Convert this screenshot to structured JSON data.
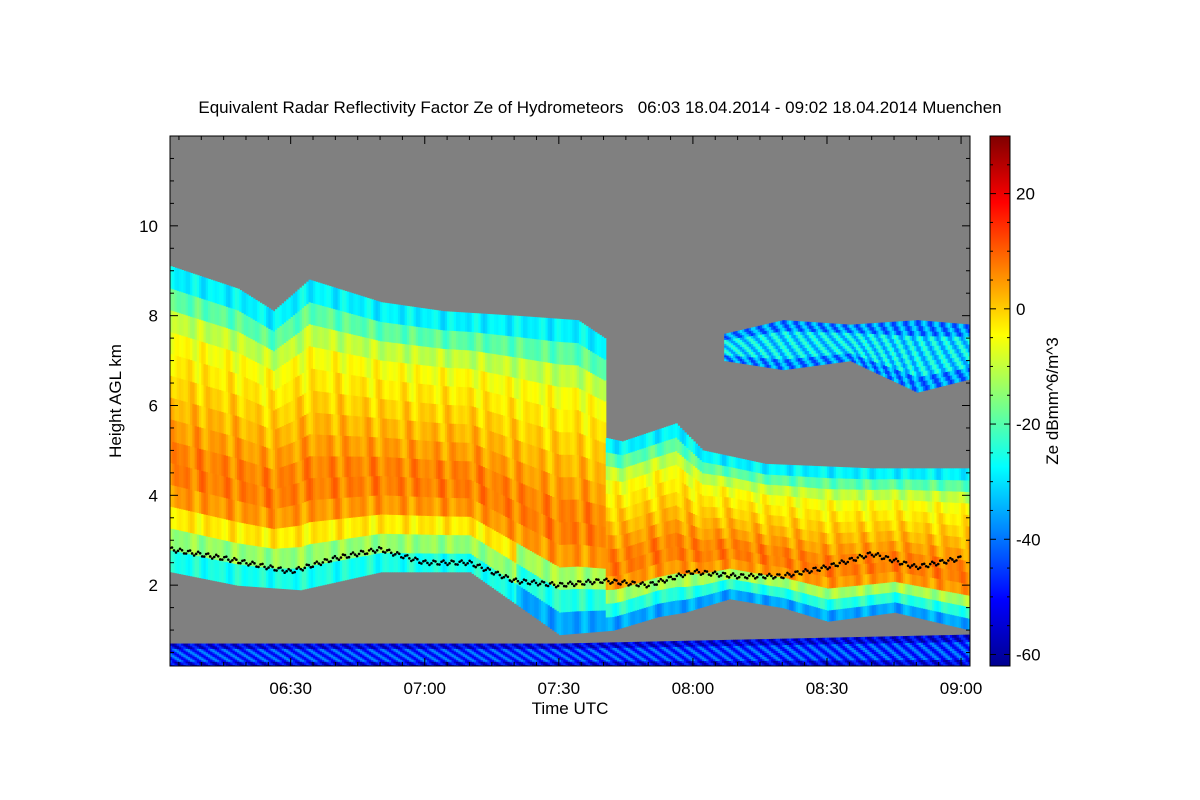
{
  "chart_data": {
    "type": "heatmap",
    "title": "Equivalent Radar Reflectivity Factor Ze of Hydrometeors   06:03 18.04.2014 - 09:02 18.04.2014 Muenchen",
    "xlabel": "Time UTC",
    "ylabel": "Height AGL km",
    "x_range_minutes": [
      363,
      542
    ],
    "ylim": [
      0.2,
      12.0
    ],
    "x_ticks": [
      {
        "minutes": 390,
        "label": "06:30"
      },
      {
        "minutes": 420,
        "label": "07:00"
      },
      {
        "minutes": 450,
        "label": "07:30"
      },
      {
        "minutes": 480,
        "label": "08:00"
      },
      {
        "minutes": 510,
        "label": "08:30"
      },
      {
        "minutes": 540,
        "label": "09:00"
      }
    ],
    "y_ticks": [
      2,
      4,
      6,
      8,
      10
    ],
    "colorbar": {
      "label": "Ze dBmm^6/m^3",
      "range": [
        -62,
        30
      ],
      "ticks": [
        20,
        0,
        -20,
        -40,
        -60
      ],
      "colormap": [
        "#00008f",
        "#0000ff",
        "#0080ff",
        "#00ffff",
        "#80ff80",
        "#ffff00",
        "#ff8000",
        "#ff0000",
        "#800000"
      ]
    },
    "background_color": "#808080",
    "cloud_layers": [
      {
        "name": "main precipitating cloud",
        "top_km": [
          [
            363,
            9.1
          ],
          [
            378,
            8.6
          ],
          [
            386,
            8.1
          ],
          [
            394,
            8.8
          ],
          [
            410,
            8.3
          ],
          [
            424,
            8.1
          ],
          [
            440,
            8.0
          ],
          [
            454,
            7.9
          ],
          [
            460,
            7.5
          ],
          [
            452,
            7.0
          ],
          [
            436,
            6.8
          ],
          [
            430,
            6.5
          ],
          [
            440,
            5.9
          ],
          [
            450,
            5.5
          ],
          [
            464,
            5.2
          ],
          [
            476,
            5.6
          ],
          [
            482,
            5.0
          ],
          [
            496,
            4.7
          ],
          [
            520,
            4.6
          ],
          [
            542,
            4.6
          ]
        ],
        "base_km": [
          [
            363,
            2.3
          ],
          [
            378,
            2.0
          ],
          [
            392,
            1.9
          ],
          [
            410,
            2.3
          ],
          [
            430,
            2.3
          ],
          [
            440,
            1.6
          ],
          [
            450,
            0.9
          ],
          [
            462,
            1.0
          ],
          [
            472,
            1.3
          ],
          [
            478,
            1.4
          ],
          [
            488,
            1.7
          ],
          [
            500,
            1.5
          ],
          [
            510,
            1.2
          ],
          [
            525,
            1.4
          ],
          [
            542,
            1.0
          ]
        ],
        "mean_dbz": -5,
        "core_dbz": 8
      },
      {
        "name": "upper cloud band",
        "top_km": [
          [
            487,
            7.6
          ],
          [
            500,
            7.9
          ],
          [
            515,
            7.8
          ],
          [
            530,
            7.9
          ],
          [
            542,
            7.8
          ]
        ],
        "base_km": [
          [
            487,
            7.0
          ],
          [
            500,
            6.8
          ],
          [
            515,
            7.0
          ],
          [
            530,
            6.3
          ],
          [
            542,
            6.6
          ]
        ],
        "mean_dbz": -30
      },
      {
        "name": "near-surface clutter",
        "top_km": [
          [
            363,
            0.7
          ],
          [
            450,
            0.7
          ],
          [
            542,
            0.9
          ]
        ],
        "base_km": [
          [
            363,
            0.2
          ],
          [
            542,
            0.2
          ]
        ],
        "mean_dbz": -45
      }
    ],
    "melting_layer_km": [
      [
        363,
        2.8
      ],
      [
        375,
        2.6
      ],
      [
        390,
        2.3
      ],
      [
        400,
        2.6
      ],
      [
        410,
        2.8
      ],
      [
        420,
        2.5
      ],
      [
        430,
        2.5
      ],
      [
        440,
        2.1
      ],
      [
        450,
        2.0
      ],
      [
        460,
        2.1
      ],
      [
        470,
        2.0
      ],
      [
        480,
        2.3
      ],
      [
        490,
        2.2
      ],
      [
        500,
        2.2
      ],
      [
        510,
        2.4
      ],
      [
        520,
        2.7
      ],
      [
        530,
        2.4
      ],
      [
        540,
        2.6
      ]
    ]
  }
}
